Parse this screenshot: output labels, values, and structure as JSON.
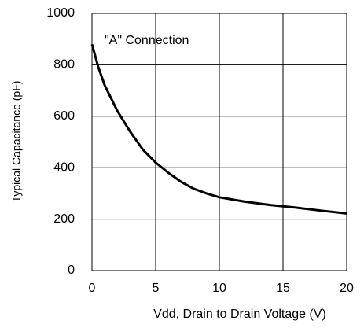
{
  "chart_data": {
    "type": "line",
    "annotation": "\"A\" Connection",
    "x_label": "Vdd, Drain to Drain Voltage (V)",
    "y_label": "Typical Capacitance (pF)",
    "x": [
      0,
      0.5,
      1,
      2,
      3,
      4,
      5,
      6,
      7,
      8,
      9,
      10,
      12,
      14,
      16,
      18,
      20
    ],
    "series": [
      {
        "color": "#000000",
        "values": [
          880,
          790,
          720,
          620,
          540,
          470,
          420,
          380,
          345,
          318,
          300,
          285,
          268,
          255,
          245,
          233,
          222
        ]
      }
    ],
    "xlim": [
      0,
      20
    ],
    "xticks": [
      0,
      5,
      10,
      15,
      20
    ],
    "ylim": [
      0,
      1000
    ],
    "yticks": [
      0,
      200,
      400,
      600,
      800,
      1000
    ],
    "grid": true
  }
}
